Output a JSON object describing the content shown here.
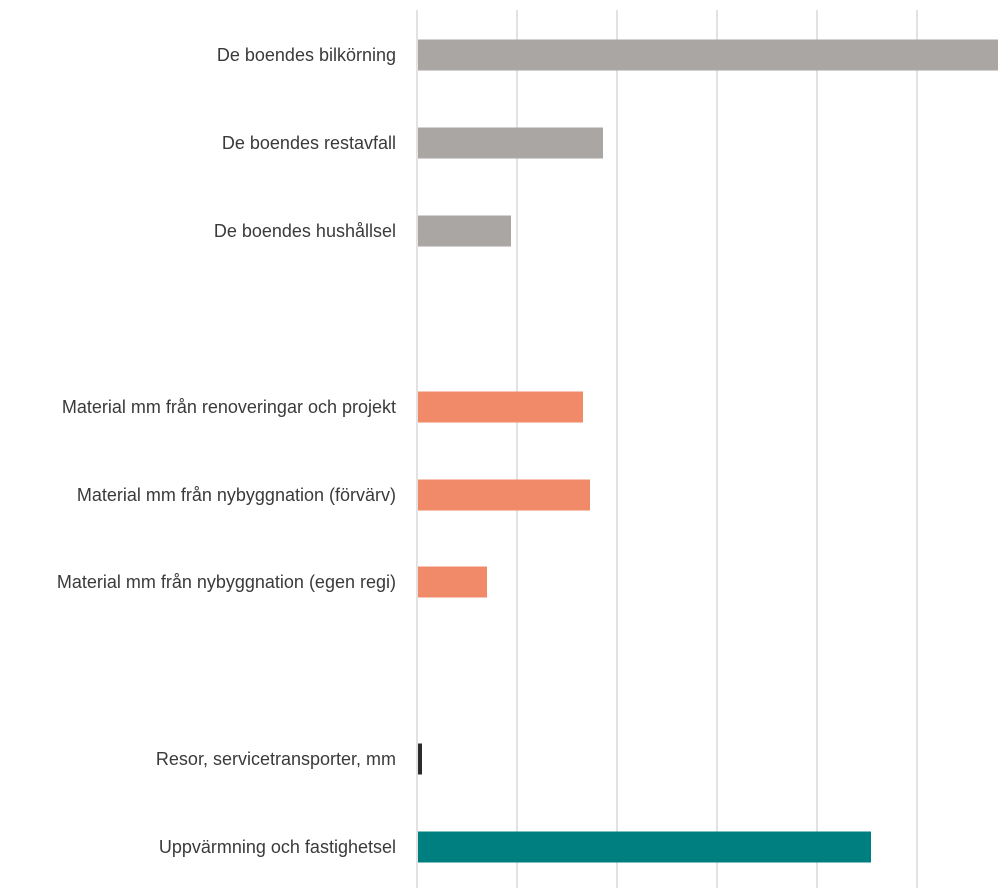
{
  "chart_data": {
    "type": "bar",
    "orientation": "horizontal",
    "title": "",
    "xlabel": "",
    "ylabel": "",
    "xlim": [
      0,
      5.8
    ],
    "grid": true,
    "legend": "none",
    "categories": [
      "De boendes bilkörning",
      "De boendes restavfall",
      "De boendes hushållsel",
      "Material mm från renoveringar och projekt",
      "Material mm från nybyggnation (förvärv)",
      "Material mm från nybyggnation (egen regi)",
      "Resor, servicetransporter, mm",
      "Uppvärmning och fastighetsel"
    ],
    "values": [
      5.8,
      1.85,
      0.93,
      1.65,
      1.72,
      0.69,
      0.04,
      4.53
    ],
    "colors": [
      "#aaa6a4",
      "#aaa6a4",
      "#aaa6a4",
      "#f08a69",
      "#f08a69",
      "#f08a69",
      "#2b2b2b",
      "#007f80"
    ]
  }
}
